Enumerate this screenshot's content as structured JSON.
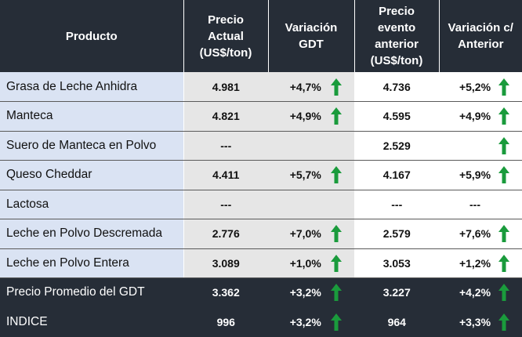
{
  "headers": {
    "producto": "Producto",
    "precio_actual": [
      "Precio",
      "Actual",
      "(US$/ton)"
    ],
    "variacion_gdt": [
      "Variación",
      "GDT"
    ],
    "precio_anterior": [
      "Precio",
      "evento",
      "anterior",
      "(US$/ton)"
    ],
    "variacion_anterior": [
      "Variación c/",
      "Anterior"
    ]
  },
  "rows": [
    {
      "producto": "Grasa de Leche Anhidra",
      "precio": "4.981",
      "var_gdt": "+4,7%",
      "arrow_gdt": "up",
      "precio_ant": "4.736",
      "var_ant": "+5,2%",
      "arrow_ant": "up"
    },
    {
      "producto": "Manteca",
      "precio": "4.821",
      "var_gdt": "+4,9%",
      "arrow_gdt": "up",
      "precio_ant": "4.595",
      "var_ant": "+4,9%",
      "arrow_ant": "up"
    },
    {
      "producto": "Suero de Manteca en Polvo",
      "precio": "---",
      "var_gdt": "",
      "arrow_gdt": "",
      "precio_ant": "2.529",
      "var_ant": "",
      "arrow_ant": "up"
    },
    {
      "producto": "Queso Cheddar",
      "precio": "4.411",
      "var_gdt": "+5,7%",
      "arrow_gdt": "up",
      "precio_ant": "4.167",
      "var_ant": "+5,9%",
      "arrow_ant": "up"
    },
    {
      "producto": "Lactosa",
      "precio": "---",
      "var_gdt": "",
      "arrow_gdt": "",
      "precio_ant": "---",
      "var_ant": "---",
      "arrow_ant": ""
    },
    {
      "producto": "Leche en Polvo Descremada",
      "precio": "2.776",
      "var_gdt": "+7,0%",
      "arrow_gdt": "up",
      "precio_ant": "2.579",
      "var_ant": "+7,6%",
      "arrow_ant": "up"
    },
    {
      "producto": "Leche en Polvo Entera",
      "precio": "3.089",
      "var_gdt": "+1,0%",
      "arrow_gdt": "up",
      "precio_ant": "3.053",
      "var_ant": "+1,2%",
      "arrow_ant": "up"
    }
  ],
  "summary": [
    {
      "producto": "Precio Promedio del GDT",
      "precio": "3.362",
      "var_gdt": "+3,2%",
      "arrow_gdt": "up",
      "precio_ant": "3.227",
      "var_ant": "+4,2%",
      "arrow_ant": "up"
    },
    {
      "producto": "INDICE",
      "precio": "996",
      "var_gdt": "+3,2%",
      "arrow_gdt": "up",
      "precio_ant": "964",
      "var_ant": "+3,3%",
      "arrow_ant": "up"
    }
  ],
  "colors": {
    "header_bg": "#262d37",
    "product_bg": "#dae3f3",
    "current_bg": "#e6e6e6",
    "arrow_up": "#1a9b3c"
  }
}
